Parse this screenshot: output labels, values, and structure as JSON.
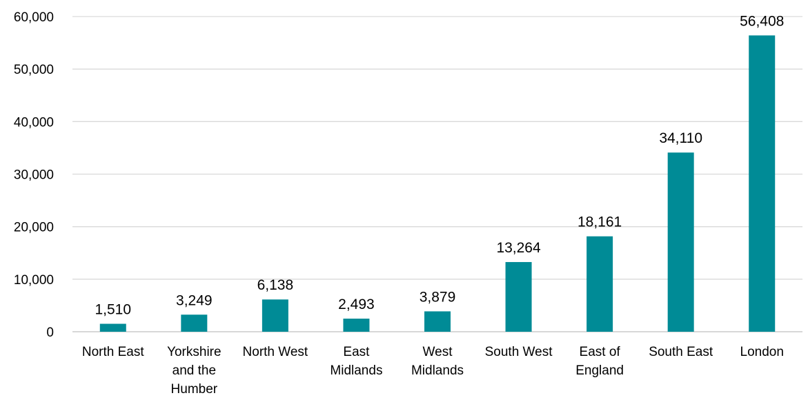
{
  "chart_data": {
    "type": "bar",
    "title": "",
    "xlabel": "",
    "ylabel": "",
    "categories": [
      "North East",
      "Yorkshire and the Humber",
      "North West",
      "East Midlands",
      "West Midlands",
      "South West",
      "East of England",
      "South East",
      "London"
    ],
    "category_lines": [
      [
        "North East"
      ],
      [
        "Yorkshire",
        "and the",
        "Humber"
      ],
      [
        "North West"
      ],
      [
        "East",
        "Midlands"
      ],
      [
        "West",
        "Midlands"
      ],
      [
        "South West"
      ],
      [
        "East of",
        "England"
      ],
      [
        "South East"
      ],
      [
        "London"
      ]
    ],
    "values": [
      1510,
      3249,
      6138,
      2493,
      3879,
      13264,
      18161,
      34110,
      56408
    ],
    "data_labels": [
      "1,510",
      "3,249",
      "6,138",
      "2,493",
      "3,879",
      "13,264",
      "18,161",
      "34,110",
      "56,408"
    ],
    "ylim": [
      0,
      60000
    ],
    "yticks": [
      0,
      10000,
      20000,
      30000,
      40000,
      50000,
      60000
    ],
    "ytick_labels": [
      "0",
      "10,000",
      "20,000",
      "30,000",
      "40,000",
      "50,000",
      "60,000"
    ],
    "grid": true,
    "legend": "none",
    "bar_color": "#008b96"
  }
}
